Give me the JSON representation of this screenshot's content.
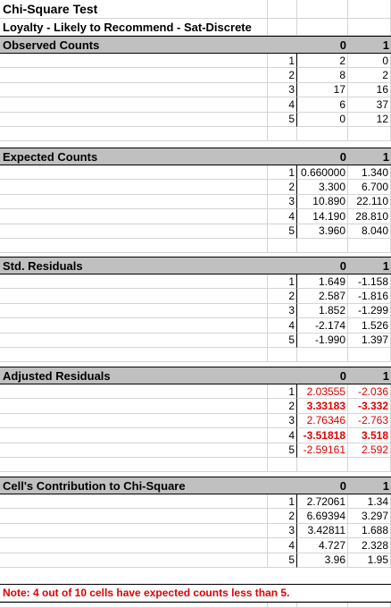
{
  "title": "Chi-Square Test",
  "subtitle": "Loyalty - Likely to Recommend - Sat-Discrete",
  "sections": [
    {
      "label": "Observed Counts",
      "col0": "0",
      "col1": "1",
      "rows": [
        {
          "idx": "1",
          "v0": "2",
          "v1": "0"
        },
        {
          "idx": "2",
          "v0": "8",
          "v1": "2"
        },
        {
          "idx": "3",
          "v0": "17",
          "v1": "16"
        },
        {
          "idx": "4",
          "v0": "6",
          "v1": "37"
        },
        {
          "idx": "5",
          "v0": "0",
          "v1": "12"
        }
      ]
    },
    {
      "label": "Expected Counts",
      "col0": "0",
      "col1": "1",
      "rows": [
        {
          "idx": "1",
          "v0": "0.660000",
          "v1": "1.340"
        },
        {
          "idx": "2",
          "v0": "3.300",
          "v1": "6.700"
        },
        {
          "idx": "3",
          "v0": "10.890",
          "v1": "22.110"
        },
        {
          "idx": "4",
          "v0": "14.190",
          "v1": "28.810"
        },
        {
          "idx": "5",
          "v0": "3.960",
          "v1": "8.040"
        }
      ]
    },
    {
      "label": "Std. Residuals",
      "col0": "0",
      "col1": "1",
      "rows": [
        {
          "idx": "1",
          "v0": "1.649",
          "v1": "-1.158"
        },
        {
          "idx": "2",
          "v0": "2.587",
          "v1": "-1.816"
        },
        {
          "idx": "3",
          "v0": "1.852",
          "v1": "-1.299"
        },
        {
          "idx": "4",
          "v0": "-2.174",
          "v1": "1.526"
        },
        {
          "idx": "5",
          "v0": "-1.990",
          "v1": "1.397"
        }
      ]
    },
    {
      "label": "Adjusted Residuals",
      "col0": "0",
      "col1": "1",
      "rows": [
        {
          "idx": "1",
          "v0": "2.03555",
          "v1": "-2.036",
          "style": "red"
        },
        {
          "idx": "2",
          "v0": "3.33183",
          "v1": "-3.332",
          "style": "red-bold"
        },
        {
          "idx": "3",
          "v0": "2.76346",
          "v1": "-2.763",
          "style": "red"
        },
        {
          "idx": "4",
          "v0": "-3.51818",
          "v1": "3.518",
          "style": "red-bold"
        },
        {
          "idx": "5",
          "v0": "-2.59161",
          "v1": "2.592",
          "style": "red"
        }
      ]
    },
    {
      "label": "Cell's Contribution to Chi-Square",
      "col0": "0",
      "col1": "1",
      "rows": [
        {
          "idx": "1",
          "v0": "2.72061",
          "v1": "1.34"
        },
        {
          "idx": "2",
          "v0": "6.69394",
          "v1": "3.297"
        },
        {
          "idx": "3",
          "v0": "3.42811",
          "v1": "1.688"
        },
        {
          "idx": "4",
          "v0": "4.727",
          "v1": "2.328"
        },
        {
          "idx": "5",
          "v0": "3.96",
          "v1": "1.95"
        }
      ]
    }
  ],
  "note": "Note: 4 out of 10 cells have expected counts less than 5.",
  "colors": {
    "highlight": "#e00000",
    "header_bg": "#c0c0c0",
    "gridline": "#d4d4d4"
  }
}
